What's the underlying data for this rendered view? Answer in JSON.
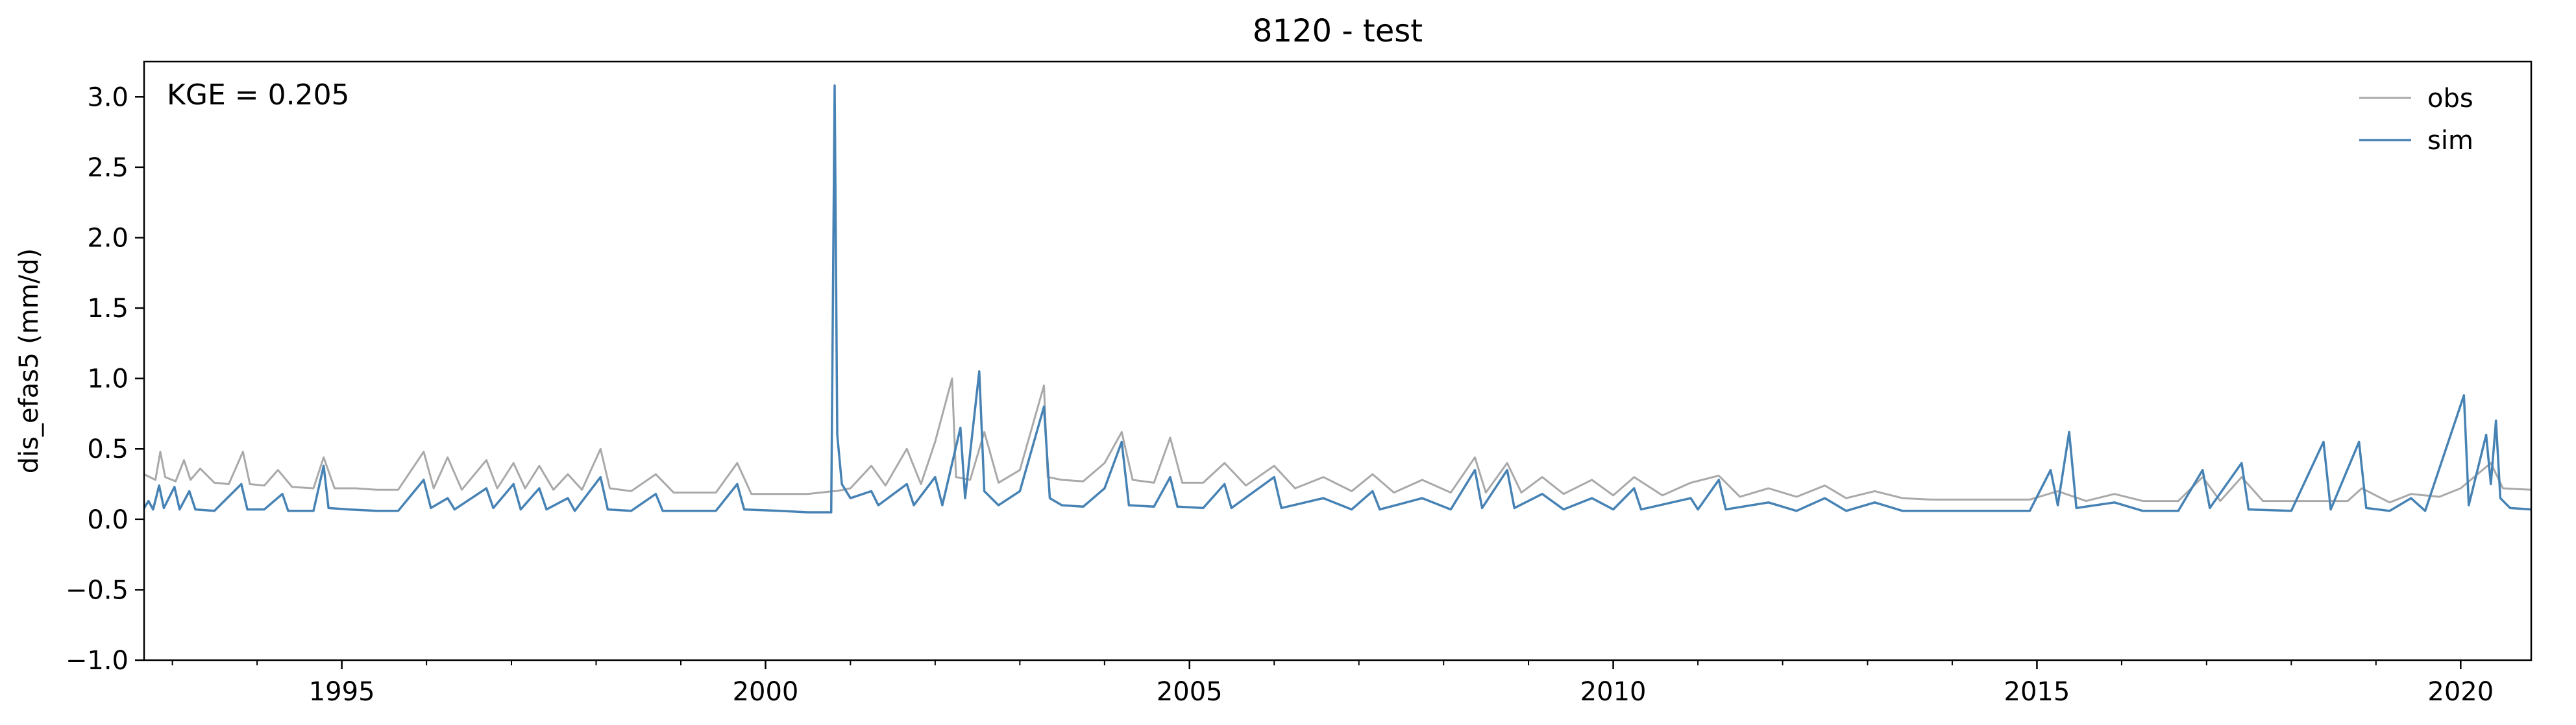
{
  "chart_data": {
    "type": "line",
    "title": "8120 - test",
    "ylabel": "dis_efas5 (mm/d)",
    "xlabel": "",
    "annotation": "KGE = 0.205",
    "xlim": [
      "1992-09-01",
      "2020-10-31"
    ],
    "ylim": [
      -1.0,
      3.25
    ],
    "yticks": [
      -1.0,
      -0.5,
      0.0,
      0.5,
      1.0,
      1.5,
      2.0,
      2.5,
      3.0
    ],
    "ytick_labels": [
      "−1.0",
      "−0.5",
      "0.0",
      "0.5",
      "1.0",
      "1.5",
      "2.0",
      "2.5",
      "3.0"
    ],
    "xticks": [
      "1995-01-01",
      "2000-01-01",
      "2005-01-01",
      "2010-01-01",
      "2015-01-01",
      "2020-01-01"
    ],
    "xtick_labels": [
      "1995",
      "2000",
      "2005",
      "2010",
      "2015",
      "2020"
    ],
    "grid": false,
    "legend": {
      "position": "top-right",
      "entries": [
        "obs",
        "sim"
      ]
    },
    "series": [
      {
        "name": "obs",
        "color": "#a9a9a9",
        "points": [
          [
            "1992-09-01",
            0.32
          ],
          [
            "1992-10-20",
            0.28
          ],
          [
            "1992-11-10",
            0.48
          ],
          [
            "1992-12-01",
            0.3
          ],
          [
            "1993-01-15",
            0.27
          ],
          [
            "1993-02-20",
            0.42
          ],
          [
            "1993-03-20",
            0.28
          ],
          [
            "1993-05-01",
            0.36
          ],
          [
            "1993-07-01",
            0.26
          ],
          [
            "1993-09-01",
            0.25
          ],
          [
            "1993-11-01",
            0.48
          ],
          [
            "1993-12-01",
            0.25
          ],
          [
            "1994-02-01",
            0.24
          ],
          [
            "1994-04-01",
            0.35
          ],
          [
            "1994-06-01",
            0.23
          ],
          [
            "1994-09-01",
            0.22
          ],
          [
            "1994-10-15",
            0.44
          ],
          [
            "1994-12-01",
            0.22
          ],
          [
            "1995-03-01",
            0.22
          ],
          [
            "1995-06-01",
            0.21
          ],
          [
            "1995-09-01",
            0.21
          ],
          [
            "1995-12-20",
            0.48
          ],
          [
            "1996-02-01",
            0.22
          ],
          [
            "1996-04-01",
            0.44
          ],
          [
            "1996-06-01",
            0.21
          ],
          [
            "1996-09-15",
            0.42
          ],
          [
            "1996-11-01",
            0.22
          ],
          [
            "1997-01-10",
            0.4
          ],
          [
            "1997-03-01",
            0.22
          ],
          [
            "1997-05-01",
            0.38
          ],
          [
            "1997-07-01",
            0.21
          ],
          [
            "1997-09-01",
            0.32
          ],
          [
            "1997-11-01",
            0.21
          ],
          [
            "1998-01-20",
            0.5
          ],
          [
            "1998-03-01",
            0.22
          ],
          [
            "1998-06-01",
            0.2
          ],
          [
            "1998-09-15",
            0.32
          ],
          [
            "1998-12-01",
            0.19
          ],
          [
            "1999-03-01",
            0.19
          ],
          [
            "1999-06-01",
            0.19
          ],
          [
            "1999-09-01",
            0.4
          ],
          [
            "1999-11-01",
            0.18
          ],
          [
            "2000-03-01",
            0.18
          ],
          [
            "2000-07-01",
            0.18
          ],
          [
            "2000-10-20",
            0.2
          ],
          [
            "2000-11-01",
            0.2
          ],
          [
            "2001-01-01",
            0.22
          ],
          [
            "2001-04-01",
            0.38
          ],
          [
            "2001-06-01",
            0.24
          ],
          [
            "2001-09-01",
            0.5
          ],
          [
            "2001-11-01",
            0.25
          ],
          [
            "2002-01-01",
            0.55
          ],
          [
            "2002-03-15",
            1.0
          ],
          [
            "2002-04-01",
            0.3
          ],
          [
            "2002-06-01",
            0.28
          ],
          [
            "2002-08-01",
            0.62
          ],
          [
            "2002-10-01",
            0.26
          ],
          [
            "2003-01-01",
            0.35
          ],
          [
            "2003-04-15",
            0.95
          ],
          [
            "2003-05-01",
            0.3
          ],
          [
            "2003-07-01",
            0.28
          ],
          [
            "2003-10-01",
            0.27
          ],
          [
            "2004-01-01",
            0.4
          ],
          [
            "2004-03-15",
            0.62
          ],
          [
            "2004-05-01",
            0.28
          ],
          [
            "2004-08-01",
            0.26
          ],
          [
            "2004-10-10",
            0.58
          ],
          [
            "2004-12-01",
            0.26
          ],
          [
            "2005-03-01",
            0.26
          ],
          [
            "2005-06-01",
            0.4
          ],
          [
            "2005-09-01",
            0.24
          ],
          [
            "2006-01-01",
            0.38
          ],
          [
            "2006-04-01",
            0.22
          ],
          [
            "2006-08-01",
            0.3
          ],
          [
            "2006-12-01",
            0.2
          ],
          [
            "2007-03-01",
            0.32
          ],
          [
            "2007-06-01",
            0.19
          ],
          [
            "2007-10-01",
            0.28
          ],
          [
            "2008-02-01",
            0.19
          ],
          [
            "2008-05-15",
            0.44
          ],
          [
            "2008-07-01",
            0.19
          ],
          [
            "2008-10-01",
            0.4
          ],
          [
            "2008-12-01",
            0.19
          ],
          [
            "2009-03-01",
            0.3
          ],
          [
            "2009-06-01",
            0.18
          ],
          [
            "2009-10-01",
            0.28
          ],
          [
            "2010-01-01",
            0.17
          ],
          [
            "2010-04-01",
            0.3
          ],
          [
            "2010-08-01",
            0.17
          ],
          [
            "2010-12-01",
            0.26
          ],
          [
            "2011-04-01",
            0.31
          ],
          [
            "2011-07-01",
            0.16
          ],
          [
            "2011-11-01",
            0.22
          ],
          [
            "2012-03-01",
            0.16
          ],
          [
            "2012-07-01",
            0.24
          ],
          [
            "2012-10-01",
            0.15
          ],
          [
            "2013-02-01",
            0.2
          ],
          [
            "2013-06-01",
            0.15
          ],
          [
            "2013-10-01",
            0.14
          ],
          [
            "2014-03-01",
            0.14
          ],
          [
            "2014-08-01",
            0.14
          ],
          [
            "2014-12-01",
            0.14
          ],
          [
            "2015-04-01",
            0.2
          ],
          [
            "2015-08-01",
            0.13
          ],
          [
            "2015-12-01",
            0.18
          ],
          [
            "2016-04-01",
            0.13
          ],
          [
            "2016-09-01",
            0.13
          ],
          [
            "2016-12-15",
            0.3
          ],
          [
            "2017-03-01",
            0.13
          ],
          [
            "2017-06-01",
            0.3
          ],
          [
            "2017-09-01",
            0.13
          ],
          [
            "2018-01-01",
            0.13
          ],
          [
            "2018-04-01",
            0.13
          ],
          [
            "2018-09-01",
            0.13
          ],
          [
            "2018-11-01",
            0.22
          ],
          [
            "2019-03-01",
            0.12
          ],
          [
            "2019-06-01",
            0.18
          ],
          [
            "2019-10-01",
            0.16
          ],
          [
            "2020-01-01",
            0.22
          ],
          [
            "2020-05-10",
            0.4
          ],
          [
            "2020-07-01",
            0.22
          ],
          [
            "2020-10-31",
            0.21
          ]
        ]
      },
      {
        "name": "sim",
        "color": "#4682b4",
        "points": [
          [
            "1992-09-01",
            0.08
          ],
          [
            "1992-09-20",
            0.13
          ],
          [
            "1992-10-10",
            0.07
          ],
          [
            "1992-11-05",
            0.24
          ],
          [
            "1992-11-25",
            0.08
          ],
          [
            "1993-01-10",
            0.23
          ],
          [
            "1993-02-01",
            0.07
          ],
          [
            "1993-03-15",
            0.2
          ],
          [
            "1993-04-10",
            0.07
          ],
          [
            "1993-07-01",
            0.06
          ],
          [
            "1993-10-25",
            0.25
          ],
          [
            "1993-11-20",
            0.07
          ],
          [
            "1994-02-01",
            0.07
          ],
          [
            "1994-04-20",
            0.18
          ],
          [
            "1994-05-15",
            0.06
          ],
          [
            "1994-09-01",
            0.06
          ],
          [
            "1994-10-15",
            0.38
          ],
          [
            "1994-11-05",
            0.08
          ],
          [
            "1995-02-01",
            0.07
          ],
          [
            "1995-06-01",
            0.06
          ],
          [
            "1995-09-01",
            0.06
          ],
          [
            "1995-12-20",
            0.28
          ],
          [
            "1996-01-20",
            0.08
          ],
          [
            "1996-04-01",
            0.15
          ],
          [
            "1996-05-01",
            0.07
          ],
          [
            "1996-09-15",
            0.22
          ],
          [
            "1996-10-15",
            0.08
          ],
          [
            "1997-01-10",
            0.25
          ],
          [
            "1997-02-10",
            0.07
          ],
          [
            "1997-05-01",
            0.22
          ],
          [
            "1997-06-01",
            0.07
          ],
          [
            "1997-09-01",
            0.15
          ],
          [
            "1997-10-01",
            0.06
          ],
          [
            "1998-01-20",
            0.3
          ],
          [
            "1998-02-20",
            0.07
          ],
          [
            "1998-06-01",
            0.06
          ],
          [
            "1998-09-15",
            0.18
          ],
          [
            "1998-10-15",
            0.06
          ],
          [
            "1999-03-01",
            0.06
          ],
          [
            "1999-06-01",
            0.06
          ],
          [
            "1999-09-01",
            0.25
          ],
          [
            "1999-10-01",
            0.07
          ],
          [
            "2000-03-01",
            0.06
          ],
          [
            "2000-07-01",
            0.05
          ],
          [
            "2000-10-10",
            0.05
          ],
          [
            "2000-10-25",
            3.08
          ],
          [
            "2000-11-05",
            0.6
          ],
          [
            "2000-11-25",
            0.25
          ],
          [
            "2001-01-01",
            0.15
          ],
          [
            "2001-04-01",
            0.2
          ],
          [
            "2001-05-01",
            0.1
          ],
          [
            "2001-09-01",
            0.25
          ],
          [
            "2001-10-01",
            0.1
          ],
          [
            "2002-01-01",
            0.3
          ],
          [
            "2002-02-01",
            0.1
          ],
          [
            "2002-04-20",
            0.65
          ],
          [
            "2002-05-10",
            0.15
          ],
          [
            "2002-07-10",
            1.05
          ],
          [
            "2002-08-01",
            0.2
          ],
          [
            "2002-10-01",
            0.1
          ],
          [
            "2003-01-01",
            0.2
          ],
          [
            "2003-04-15",
            0.8
          ],
          [
            "2003-05-10",
            0.15
          ],
          [
            "2003-07-01",
            0.1
          ],
          [
            "2003-10-01",
            0.09
          ],
          [
            "2004-01-01",
            0.22
          ],
          [
            "2004-03-15",
            0.55
          ],
          [
            "2004-04-15",
            0.1
          ],
          [
            "2004-08-01",
            0.09
          ],
          [
            "2004-10-10",
            0.3
          ],
          [
            "2004-11-10",
            0.09
          ],
          [
            "2005-03-01",
            0.08
          ],
          [
            "2005-06-01",
            0.25
          ],
          [
            "2005-07-01",
            0.08
          ],
          [
            "2006-01-01",
            0.3
          ],
          [
            "2006-02-01",
            0.08
          ],
          [
            "2006-08-01",
            0.15
          ],
          [
            "2006-12-01",
            0.07
          ],
          [
            "2007-03-01",
            0.2
          ],
          [
            "2007-04-01",
            0.07
          ],
          [
            "2007-10-01",
            0.15
          ],
          [
            "2008-02-01",
            0.07
          ],
          [
            "2008-05-15",
            0.35
          ],
          [
            "2008-06-15",
            0.08
          ],
          [
            "2008-10-01",
            0.35
          ],
          [
            "2008-11-01",
            0.08
          ],
          [
            "2009-03-01",
            0.18
          ],
          [
            "2009-06-01",
            0.07
          ],
          [
            "2009-10-01",
            0.15
          ],
          [
            "2010-01-01",
            0.07
          ],
          [
            "2010-04-01",
            0.22
          ],
          [
            "2010-05-01",
            0.07
          ],
          [
            "2010-12-01",
            0.15
          ],
          [
            "2011-01-01",
            0.07
          ],
          [
            "2011-04-01",
            0.28
          ],
          [
            "2011-05-01",
            0.07
          ],
          [
            "2011-11-01",
            0.12
          ],
          [
            "2012-03-01",
            0.06
          ],
          [
            "2012-07-01",
            0.15
          ],
          [
            "2012-10-01",
            0.06
          ],
          [
            "2013-02-01",
            0.12
          ],
          [
            "2013-06-01",
            0.06
          ],
          [
            "2013-10-01",
            0.06
          ],
          [
            "2014-03-01",
            0.06
          ],
          [
            "2014-08-01",
            0.06
          ],
          [
            "2014-12-01",
            0.06
          ],
          [
            "2015-03-01",
            0.35
          ],
          [
            "2015-04-01",
            0.1
          ],
          [
            "2015-05-20",
            0.62
          ],
          [
            "2015-06-20",
            0.08
          ],
          [
            "2015-12-01",
            0.12
          ],
          [
            "2016-04-01",
            0.06
          ],
          [
            "2016-09-01",
            0.06
          ],
          [
            "2016-12-15",
            0.35
          ],
          [
            "2017-01-15",
            0.08
          ],
          [
            "2017-06-01",
            0.4
          ],
          [
            "2017-07-01",
            0.07
          ],
          [
            "2018-01-01",
            0.06
          ],
          [
            "2018-05-20",
            0.55
          ],
          [
            "2018-06-20",
            0.07
          ],
          [
            "2018-10-20",
            0.55
          ],
          [
            "2018-11-20",
            0.08
          ],
          [
            "2019-03-01",
            0.06
          ],
          [
            "2019-06-01",
            0.15
          ],
          [
            "2019-08-01",
            0.06
          ],
          [
            "2020-01-15",
            0.88
          ],
          [
            "2020-02-05",
            0.1
          ],
          [
            "2020-04-20",
            0.6
          ],
          [
            "2020-05-10",
            0.25
          ],
          [
            "2020-06-01",
            0.7
          ],
          [
            "2020-06-20",
            0.15
          ],
          [
            "2020-08-01",
            0.08
          ],
          [
            "2020-10-31",
            0.07
          ]
        ]
      }
    ]
  }
}
